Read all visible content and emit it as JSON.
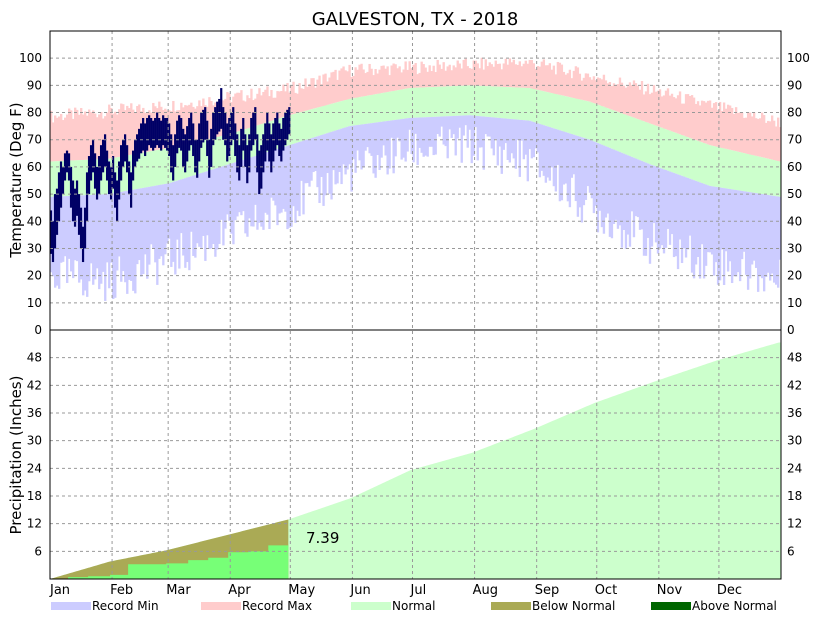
{
  "chart_data": {
    "type": "area",
    "title": "GALVESTON, TX - 2018",
    "months": [
      "Jan",
      "Feb",
      "Mar",
      "Apr",
      "May",
      "Jun",
      "Jul",
      "Aug",
      "Sep",
      "Oct",
      "Nov",
      "Dec"
    ],
    "temperature_panel": {
      "ylabel": "Temperature (Deg F)",
      "ylim": [
        0,
        110
      ],
      "yticks": [
        0,
        10,
        20,
        30,
        40,
        50,
        60,
        70,
        80,
        90,
        100
      ],
      "normal_max": {
        "doy": [
          1,
          30,
          60,
          90,
          120,
          150,
          180,
          210,
          240,
          270,
          300,
          330,
          365
        ],
        "values": [
          62,
          63,
          67,
          72,
          79,
          85,
          89,
          90,
          89,
          84,
          76,
          68,
          62
        ]
      },
      "normal_min": {
        "doy": [
          1,
          30,
          60,
          90,
          120,
          150,
          180,
          210,
          240,
          270,
          300,
          330,
          365
        ],
        "values": [
          49,
          50,
          54,
          61,
          68,
          75,
          78,
          79,
          77,
          70,
          61,
          53,
          49
        ]
      },
      "record_max_nodes": {
        "doy": [
          1,
          30,
          60,
          90,
          120,
          150,
          180,
          210,
          240,
          270,
          300,
          330,
          365
        ],
        "values": [
          78,
          80,
          82,
          85,
          88,
          95,
          96,
          97,
          98,
          93,
          88,
          82,
          76
        ]
      },
      "record_min_nodes": {
        "doy": [
          1,
          30,
          60,
          90,
          120,
          150,
          180,
          210,
          240,
          270,
          300,
          330,
          365
        ],
        "values": [
          20,
          18,
          26,
          35,
          45,
          58,
          66,
          68,
          62,
          45,
          32,
          25,
          18
        ]
      },
      "observed": [
        {
          "date": "Jan 1",
          "low": 28,
          "high": 44
        },
        {
          "date": "Jan 2",
          "low": 25,
          "high": 40
        },
        {
          "date": "Jan 3",
          "low": 30,
          "high": 50
        },
        {
          "date": "Jan 4",
          "low": 35,
          "high": 52
        },
        {
          "date": "Jan 5",
          "low": 40,
          "high": 58
        },
        {
          "date": "Jan 6",
          "low": 45,
          "high": 62
        },
        {
          "date": "Jan 7",
          "low": 50,
          "high": 60
        },
        {
          "date": "Jan 8",
          "low": 55,
          "high": 65
        },
        {
          "date": "Jan 9",
          "low": 58,
          "high": 66
        },
        {
          "date": "Jan 10",
          "low": 55,
          "high": 65
        },
        {
          "date": "Jan 11",
          "low": 45,
          "high": 60
        },
        {
          "date": "Jan 12",
          "low": 40,
          "high": 55
        },
        {
          "date": "Jan 13",
          "low": 38,
          "high": 52
        },
        {
          "date": "Jan 14",
          "low": 42,
          "high": 55
        },
        {
          "date": "Jan 15",
          "low": 35,
          "high": 50
        },
        {
          "date": "Jan 16",
          "low": 30,
          "high": 45
        },
        {
          "date": "Jan 17",
          "low": 25,
          "high": 38
        },
        {
          "date": "Jan 18",
          "low": 30,
          "high": 45
        },
        {
          "date": "Jan 19",
          "low": 40,
          "high": 58
        },
        {
          "date": "Jan 20",
          "low": 50,
          "high": 64
        },
        {
          "date": "Jan 21",
          "low": 55,
          "high": 68
        },
        {
          "date": "Jan 22",
          "low": 58,
          "high": 70
        },
        {
          "date": "Jan 23",
          "low": 52,
          "high": 65
        },
        {
          "date": "Jan 24",
          "low": 48,
          "high": 60
        },
        {
          "date": "Jan 25",
          "low": 50,
          "high": 64
        },
        {
          "date": "Jan 26",
          "low": 55,
          "high": 68
        },
        {
          "date": "Jan 27",
          "low": 58,
          "high": 70
        },
        {
          "date": "Jan 28",
          "low": 60,
          "high": 72
        },
        {
          "date": "Jan 29",
          "low": 55,
          "high": 66
        },
        {
          "date": "Jan 30",
          "low": 50,
          "high": 62
        },
        {
          "date": "Jan 31",
          "low": 48,
          "high": 60
        },
        {
          "date": "Feb 1",
          "low": 52,
          "high": 64
        },
        {
          "date": "Feb 2",
          "low": 45,
          "high": 58
        },
        {
          "date": "Feb 3",
          "low": 40,
          "high": 55
        },
        {
          "date": "Feb 4",
          "low": 48,
          "high": 62
        },
        {
          "date": "Feb 5",
          "low": 55,
          "high": 68
        },
        {
          "date": "Feb 6",
          "low": 60,
          "high": 70
        },
        {
          "date": "Feb 7",
          "low": 62,
          "high": 72
        },
        {
          "date": "Feb 8",
          "low": 58,
          "high": 68
        },
        {
          "date": "Feb 9",
          "low": 50,
          "high": 62
        },
        {
          "date": "Feb 10",
          "low": 45,
          "high": 58
        },
        {
          "date": "Feb 11",
          "low": 55,
          "high": 66
        },
        {
          "date": "Feb 12",
          "low": 60,
          "high": 70
        },
        {
          "date": "Feb 13",
          "low": 62,
          "high": 72
        },
        {
          "date": "Feb 14",
          "low": 63,
          "high": 74
        },
        {
          "date": "Feb 15",
          "low": 65,
          "high": 76
        },
        {
          "date": "Feb 16",
          "low": 66,
          "high": 78
        },
        {
          "date": "Feb 17",
          "low": 64,
          "high": 76
        },
        {
          "date": "Feb 18",
          "low": 66,
          "high": 78
        },
        {
          "date": "Feb 19",
          "low": 68,
          "high": 79
        },
        {
          "date": "Feb 20",
          "low": 67,
          "high": 78
        },
        {
          "date": "Feb 21",
          "low": 66,
          "high": 77
        },
        {
          "date": "Feb 22",
          "low": 67,
          "high": 78
        },
        {
          "date": "Feb 23",
          "low": 68,
          "high": 80
        },
        {
          "date": "Feb 24",
          "low": 67,
          "high": 78
        },
        {
          "date": "Feb 25",
          "low": 66,
          "high": 77
        },
        {
          "date": "Feb 26",
          "low": 68,
          "high": 79
        },
        {
          "date": "Feb 27",
          "low": 67,
          "high": 78
        },
        {
          "date": "Feb 28",
          "low": 66,
          "high": 78
        },
        {
          "date": "Mar 1",
          "low": 64,
          "high": 76
        },
        {
          "date": "Mar 2",
          "low": 58,
          "high": 72
        },
        {
          "date": "Mar 3",
          "low": 55,
          "high": 68
        },
        {
          "date": "Mar 4",
          "low": 60,
          "high": 72
        },
        {
          "date": "Mar 5",
          "low": 65,
          "high": 77
        },
        {
          "date": "Mar 6",
          "low": 67,
          "high": 79
        },
        {
          "date": "Mar 7",
          "low": 66,
          "high": 78
        },
        {
          "date": "Mar 8",
          "low": 60,
          "high": 74
        },
        {
          "date": "Mar 9",
          "low": 58,
          "high": 72
        },
        {
          "date": "Mar 10",
          "low": 62,
          "high": 75
        },
        {
          "date": "Mar 11",
          "low": 66,
          "high": 78
        },
        {
          "date": "Mar 12",
          "low": 68,
          "high": 80
        },
        {
          "date": "Mar 13",
          "low": 64,
          "high": 76
        },
        {
          "date": "Mar 14",
          "low": 58,
          "high": 70
        },
        {
          "date": "Mar 15",
          "low": 56,
          "high": 70
        },
        {
          "date": "Mar 16",
          "low": 62,
          "high": 76
        },
        {
          "date": "Mar 17",
          "low": 67,
          "high": 80
        },
        {
          "date": "Mar 18",
          "low": 69,
          "high": 81
        },
        {
          "date": "Mar 19",
          "low": 70,
          "high": 82
        },
        {
          "date": "Mar 20",
          "low": 64,
          "high": 77
        },
        {
          "date": "Mar 21",
          "low": 56,
          "high": 70
        },
        {
          "date": "Mar 22",
          "low": 60,
          "high": 74
        },
        {
          "date": "Mar 23",
          "low": 68,
          "high": 80
        },
        {
          "date": "Mar 24",
          "low": 70,
          "high": 82
        },
        {
          "date": "Mar 25",
          "low": 72,
          "high": 84
        },
        {
          "date": "Mar 26",
          "low": 73,
          "high": 85
        },
        {
          "date": "Mar 27",
          "low": 74,
          "high": 89
        },
        {
          "date": "Mar 28",
          "low": 70,
          "high": 82
        },
        {
          "date": "Mar 29",
          "low": 68,
          "high": 80
        },
        {
          "date": "Mar 30",
          "low": 62,
          "high": 76
        },
        {
          "date": "Mar 31",
          "low": 64,
          "high": 78
        },
        {
          "date": "Apr 1",
          "low": 68,
          "high": 80
        },
        {
          "date": "Apr 2",
          "low": 70,
          "high": 82
        },
        {
          "date": "Apr 3",
          "low": 64,
          "high": 76
        },
        {
          "date": "Apr 4",
          "low": 58,
          "high": 72
        },
        {
          "date": "Apr 5",
          "low": 55,
          "high": 68
        },
        {
          "date": "Apr 6",
          "low": 60,
          "high": 74
        },
        {
          "date": "Apr 7",
          "low": 66,
          "high": 78
        },
        {
          "date": "Apr 8",
          "low": 60,
          "high": 72
        },
        {
          "date": "Apr 9",
          "low": 54,
          "high": 68
        },
        {
          "date": "Apr 10",
          "low": 58,
          "high": 72
        },
        {
          "date": "Apr 11",
          "low": 66,
          "high": 78
        },
        {
          "date": "Apr 12",
          "low": 68,
          "high": 80
        },
        {
          "date": "Apr 13",
          "low": 70,
          "high": 82
        },
        {
          "date": "Apr 14",
          "low": 58,
          "high": 72
        },
        {
          "date": "Apr 15",
          "low": 50,
          "high": 66
        },
        {
          "date": "Apr 16",
          "low": 52,
          "high": 68
        },
        {
          "date": "Apr 17",
          "low": 58,
          "high": 72
        },
        {
          "date": "Apr 18",
          "low": 62,
          "high": 76
        },
        {
          "date": "Apr 19",
          "low": 66,
          "high": 80
        },
        {
          "date": "Apr 20",
          "low": 62,
          "high": 76
        },
        {
          "date": "Apr 21",
          "low": 58,
          "high": 72
        },
        {
          "date": "Apr 22",
          "low": 62,
          "high": 76
        },
        {
          "date": "Apr 23",
          "low": 66,
          "high": 78
        },
        {
          "date": "Apr 24",
          "low": 68,
          "high": 80
        },
        {
          "date": "Apr 25",
          "low": 64,
          "high": 76
        },
        {
          "date": "Apr 26",
          "low": 62,
          "high": 74
        },
        {
          "date": "Apr 27",
          "low": 66,
          "high": 78
        },
        {
          "date": "Apr 28",
          "low": 68,
          "high": 80
        },
        {
          "date": "Apr 29",
          "low": 70,
          "high": 81
        },
        {
          "date": "Apr 30",
          "low": 72,
          "high": 82
        }
      ]
    },
    "precip_panel": {
      "ylabel": "Precipitation (Inches)",
      "ylim": [
        0,
        54
      ],
      "yticks": [
        6,
        12,
        18,
        24,
        30,
        36,
        42,
        48
      ],
      "normal_cumulative": {
        "doy": [
          1,
          31,
          59,
          90,
          120,
          151,
          181,
          212,
          243,
          273,
          304,
          334,
          365
        ],
        "values": [
          0,
          3.8,
          6.2,
          9.6,
          12.9,
          17.5,
          23.6,
          27.4,
          32.6,
          38.2,
          43.0,
          47.4,
          51.3
        ]
      },
      "observed_cumulative": {
        "doy": [
          1,
          10,
          20,
          31,
          40,
          59,
          70,
          80,
          90,
          100,
          110,
          120
        ],
        "values": [
          0,
          0.4,
          0.6,
          0.9,
          3.2,
          3.4,
          4.1,
          4.6,
          5.8,
          6.0,
          7.3,
          7.39
        ]
      },
      "annotation": "7.39"
    },
    "legend": [
      {
        "label": "Record Min",
        "color": "#ccccff"
      },
      {
        "label": "Record Max",
        "color": "#ffcccc"
      },
      {
        "label": "Normal",
        "color": "#ccffcc"
      },
      {
        "label": "Below Normal",
        "color": "#aaaa55"
      },
      {
        "label": "Above Normal",
        "color": "#006600"
      }
    ],
    "colors": {
      "record_max": "#ffcccc",
      "record_min": "#ccccff",
      "normal": "#ccffcc",
      "observed_temp": "#000066",
      "below_normal": "#aaaa55",
      "observed_precip": "#77ff77",
      "grid": "#999999"
    }
  }
}
